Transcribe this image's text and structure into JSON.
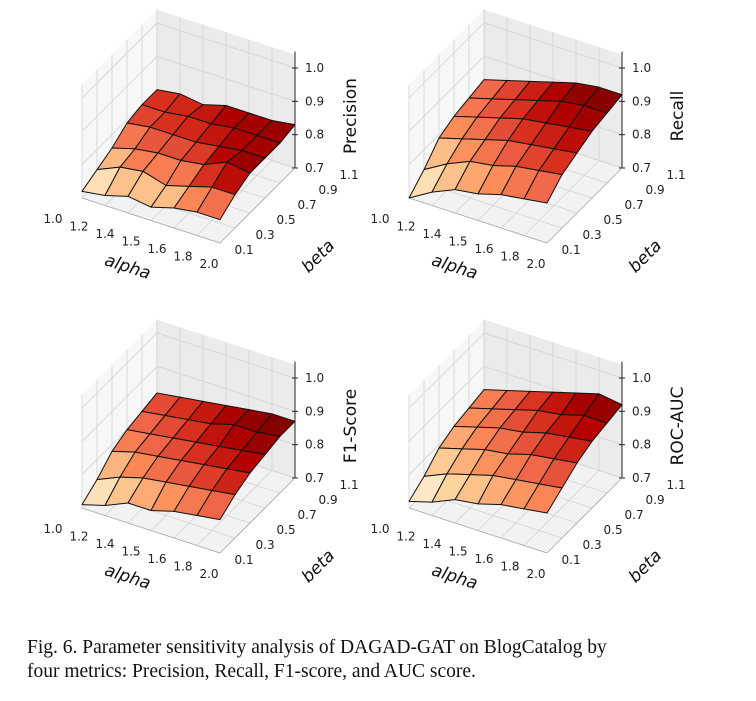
{
  "chart_data": [
    {
      "type": "surface3d",
      "zlabel": "Precision",
      "xlabel": "alpha",
      "ylabel": "beta",
      "x_ticks": [
        "1.0",
        "1.2",
        "1.4",
        "1.5",
        "1.6",
        "1.8",
        "2.0"
      ],
      "y_ticks": [
        "0.1",
        "0.3",
        "0.5",
        "0.7",
        "0.9",
        "1.1"
      ],
      "z_ticks": [
        "0.7",
        "0.8",
        "0.9",
        "1.0"
      ],
      "zlim": [
        0.7,
        1.0
      ],
      "colormap": "OrRd",
      "z": [
        [
          0.72,
          0.74,
          0.76,
          0.79,
          0.8,
          0.8
        ],
        [
          0.73,
          0.77,
          0.78,
          0.8,
          0.8,
          0.81
        ],
        [
          0.75,
          0.78,
          0.79,
          0.8,
          0.81,
          0.8
        ],
        [
          0.74,
          0.76,
          0.79,
          0.8,
          0.81,
          0.82
        ],
        [
          0.76,
          0.78,
          0.8,
          0.81,
          0.82,
          0.82
        ],
        [
          0.77,
          0.8,
          0.83,
          0.82,
          0.82,
          0.82
        ],
        [
          0.77,
          0.8,
          0.82,
          0.82,
          0.82,
          0.83
        ]
      ]
    },
    {
      "type": "surface3d",
      "zlabel": "Recall",
      "xlabel": "alpha",
      "ylabel": "beta",
      "x_ticks": [
        "1.0",
        "1.2",
        "1.4",
        "1.5",
        "1.6",
        "1.8",
        "2.0"
      ],
      "y_ticks": [
        "0.1",
        "0.3",
        "0.5",
        "0.7",
        "0.9",
        "1.1"
      ],
      "z_ticks": [
        "0.7",
        "0.8",
        "0.9",
        "1.0"
      ],
      "zlim": [
        0.7,
        1.0
      ],
      "colormap": "OrRd",
      "z": [
        [
          0.7,
          0.74,
          0.79,
          0.81,
          0.82,
          0.83
        ],
        [
          0.74,
          0.78,
          0.81,
          0.83,
          0.84,
          0.85
        ],
        [
          0.77,
          0.81,
          0.83,
          0.85,
          0.86,
          0.87
        ],
        [
          0.78,
          0.82,
          0.85,
          0.87,
          0.88,
          0.89
        ],
        [
          0.8,
          0.84,
          0.86,
          0.88,
          0.9,
          0.91
        ],
        [
          0.81,
          0.85,
          0.87,
          0.89,
          0.91,
          0.92
        ],
        [
          0.82,
          0.86,
          0.88,
          0.9,
          0.91,
          0.92
        ]
      ]
    },
    {
      "type": "surface3d",
      "zlabel": "F1-Score",
      "xlabel": "alpha",
      "ylabel": "beta",
      "x_ticks": [
        "1.0",
        "1.2",
        "1.4",
        "1.5",
        "1.6",
        "1.8",
        "2.0"
      ],
      "y_ticks": [
        "0.1",
        "0.3",
        "0.5",
        "0.7",
        "0.9",
        "1.1"
      ],
      "z_ticks": [
        "0.7",
        "0.8",
        "0.9",
        "1.0"
      ],
      "zlim": [
        0.7,
        1.0
      ],
      "colormap": "OrRd",
      "z": [
        [
          0.71,
          0.74,
          0.78,
          0.8,
          0.81,
          0.82
        ],
        [
          0.73,
          0.77,
          0.8,
          0.81,
          0.82,
          0.83
        ],
        [
          0.76,
          0.79,
          0.81,
          0.82,
          0.83,
          0.84
        ],
        [
          0.76,
          0.8,
          0.82,
          0.83,
          0.84,
          0.85
        ],
        [
          0.78,
          0.81,
          0.83,
          0.84,
          0.86,
          0.86
        ],
        [
          0.79,
          0.82,
          0.84,
          0.85,
          0.86,
          0.87
        ],
        [
          0.8,
          0.83,
          0.85,
          0.86,
          0.87,
          0.87
        ]
      ]
    },
    {
      "type": "surface3d",
      "zlabel": "ROC-AUC",
      "xlabel": "alpha",
      "ylabel": "beta",
      "x_ticks": [
        "1.0",
        "1.2",
        "1.4",
        "1.5",
        "1.6",
        "1.8",
        "2.0"
      ],
      "y_ticks": [
        "0.1",
        "0.3",
        "0.5",
        "0.7",
        "0.9",
        "1.1"
      ],
      "z_ticks": [
        "0.7",
        "0.8",
        "0.9",
        "1.0"
      ],
      "zlim": [
        0.7,
        1.0
      ],
      "colormap": "OrRd",
      "z": [
        [
          0.72,
          0.75,
          0.79,
          0.81,
          0.82,
          0.83
        ],
        [
          0.74,
          0.78,
          0.81,
          0.83,
          0.84,
          0.85
        ],
        [
          0.77,
          0.8,
          0.83,
          0.85,
          0.86,
          0.87
        ],
        [
          0.78,
          0.82,
          0.84,
          0.86,
          0.88,
          0.89
        ],
        [
          0.8,
          0.83,
          0.86,
          0.88,
          0.89,
          0.91
        ],
        [
          0.81,
          0.84,
          0.87,
          0.89,
          0.91,
          0.93
        ],
        [
          0.82,
          0.85,
          0.88,
          0.9,
          0.91,
          0.92
        ]
      ]
    }
  ],
  "caption": {
    "line1": "Fig. 6.  Parameter sensitivity analysis of DAGAD-GAT on BlogCatalog by",
    "line2": "four metrics: Precision, Recall, F1-score, and AUC score."
  }
}
